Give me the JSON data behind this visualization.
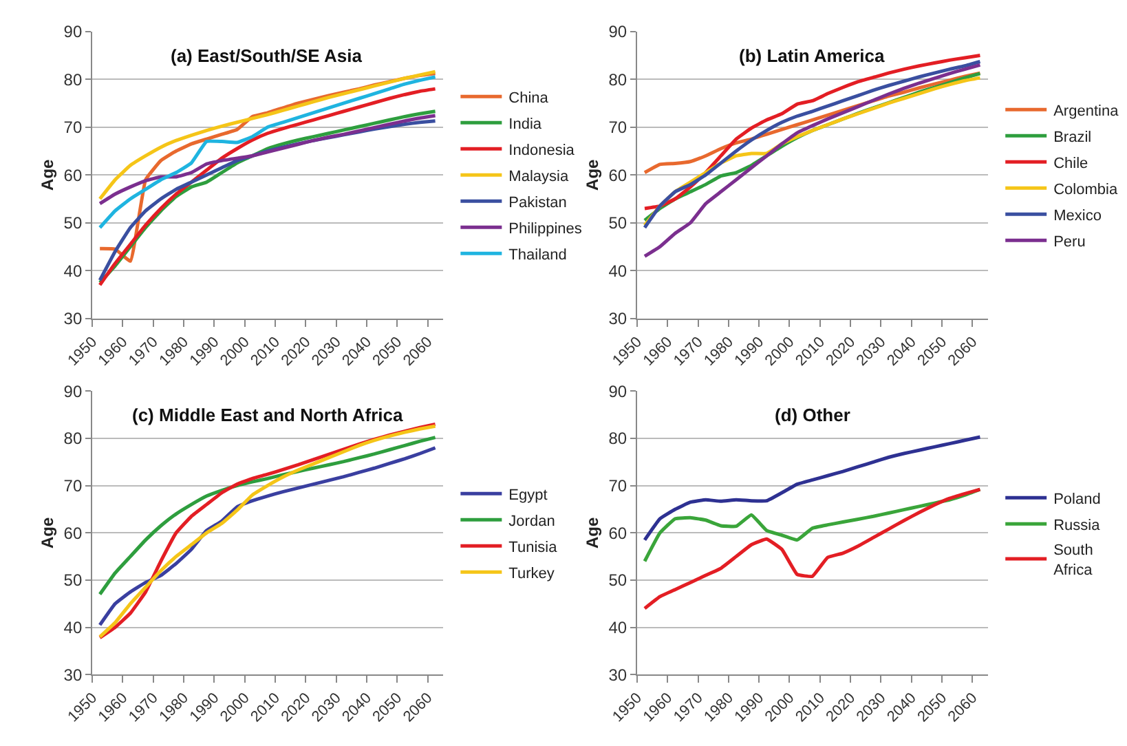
{
  "chart_data": [
    {
      "type": "line",
      "title": "(a) East/South/SE Asia",
      "ylabel": "Age",
      "grid": "y",
      "legend": "right",
      "x": [
        1952.5,
        1957.5,
        1962.5,
        1967.5,
        1972.5,
        1977.5,
        1982.5,
        1987.5,
        1992.5,
        1997.5,
        2002.5,
        2007.5,
        2012.5,
        2017.5,
        2022.5,
        2027.5,
        2032.5,
        2037.5,
        2042.5,
        2047.5,
        2052.5,
        2057.5,
        2062.5
      ],
      "xlim": [
        1950,
        2065
      ],
      "xticks": [
        1950,
        1960,
        1970,
        1980,
        1990,
        2000,
        2010,
        2020,
        2030,
        2040,
        2050,
        2060
      ],
      "ylim": [
        30,
        90
      ],
      "yticks": [
        30,
        40,
        50,
        60,
        70,
        80,
        90
      ],
      "series": [
        {
          "name": "China",
          "color": "#e8692e",
          "values": [
            44.6,
            44.5,
            42,
            59,
            63,
            65,
            66.5,
            67.5,
            68.5,
            69.5,
            72.2,
            73,
            74,
            75,
            75.8,
            76.6,
            77.3,
            78,
            78.8,
            79.5,
            80.2,
            80.8,
            81.2
          ]
        },
        {
          "name": "India",
          "color": "#2e9e3e",
          "values": [
            37.5,
            41,
            45,
            49,
            52.5,
            55.5,
            57.5,
            58.5,
            60.5,
            62.5,
            64,
            65.5,
            66.5,
            67.3,
            68,
            68.7,
            69.4,
            70.1,
            70.8,
            71.5,
            72.2,
            72.8,
            73.3
          ]
        },
        {
          "name": "Indonesia",
          "color": "#e31e24",
          "values": [
            37,
            41.5,
            45.5,
            49.5,
            53,
            56,
            58.5,
            61,
            63.5,
            65.5,
            67.3,
            68.7,
            69.7,
            70.6,
            71.5,
            72.4,
            73.3,
            74.2,
            75.1,
            76,
            76.8,
            77.5,
            78
          ]
        },
        {
          "name": "Malaysia",
          "color": "#f5c518",
          "values": [
            55,
            59,
            62,
            64,
            65.8,
            67.2,
            68.3,
            69.3,
            70.2,
            71,
            71.8,
            72.6,
            73.5,
            74.4,
            75.3,
            76.2,
            77,
            77.8,
            78.6,
            79.4,
            80.2,
            80.9,
            81.6
          ]
        },
        {
          "name": "Pakistan",
          "color": "#3a4fa0",
          "values": [
            38,
            44,
            49,
            52.5,
            55,
            57,
            58.5,
            60,
            61.5,
            63,
            64,
            65,
            65.8,
            66.5,
            67.2,
            67.8,
            68.4,
            69,
            69.6,
            70.1,
            70.6,
            71,
            71.3
          ]
        },
        {
          "name": "Philippines",
          "color": "#7b2f8f",
          "values": [
            54,
            56,
            57.5,
            58.8,
            59.6,
            59.6,
            60.5,
            62.3,
            63,
            63.5,
            64,
            64.8,
            65.6,
            66.4,
            67.2,
            67.9,
            68.5,
            69.2,
            69.9,
            70.6,
            71.3,
            71.9,
            72.4
          ]
        },
        {
          "name": "Thailand",
          "color": "#1fb4e0",
          "values": [
            49,
            52.5,
            55,
            57,
            59,
            60.5,
            62.5,
            67,
            67,
            66.8,
            68,
            70,
            71,
            72,
            73,
            74,
            75,
            76,
            77,
            78,
            79,
            79.8,
            80.5
          ]
        }
      ]
    },
    {
      "type": "line",
      "title": "(b) Latin America",
      "ylabel": "Age",
      "grid": "y",
      "legend": "right",
      "x": [
        1952.5,
        1957.5,
        1962.5,
        1967.5,
        1972.5,
        1977.5,
        1982.5,
        1987.5,
        1992.5,
        1997.5,
        2002.5,
        2007.5,
        2012.5,
        2017.5,
        2022.5,
        2027.5,
        2032.5,
        2037.5,
        2042.5,
        2047.5,
        2052.5,
        2057.5,
        2062.5
      ],
      "xlim": [
        1950,
        2065
      ],
      "xticks": [
        1950,
        1960,
        1970,
        1980,
        1990,
        2000,
        2010,
        2020,
        2030,
        2040,
        2050,
        2060
      ],
      "ylim": [
        30,
        90
      ],
      "yticks": [
        30,
        40,
        50,
        60,
        70,
        80,
        90
      ],
      "series": [
        {
          "name": "Argentina",
          "color": "#e8692e",
          "values": [
            60.5,
            62.2,
            62.4,
            62.8,
            64,
            65.5,
            66.7,
            67.5,
            68.5,
            69.5,
            70.5,
            71.5,
            72.5,
            73.5,
            74.5,
            75.5,
            76.5,
            77.3,
            78.2,
            79,
            79.8,
            80.6,
            81.3
          ]
        },
        {
          "name": "Brazil",
          "color": "#2e9e3e",
          "values": [
            50.5,
            53,
            55,
            56.5,
            58,
            59.8,
            60.5,
            62,
            64,
            66,
            67.8,
            69.3,
            70.5,
            71.7,
            72.9,
            74,
            75.1,
            76.2,
            77.3,
            78.3,
            79.3,
            80.3,
            81.2
          ]
        },
        {
          "name": "Chile",
          "color": "#e31e24",
          "values": [
            53,
            53.5,
            55,
            57.5,
            60.5,
            64,
            67.5,
            69.8,
            71.5,
            72.8,
            74.8,
            75.5,
            77,
            78.3,
            79.5,
            80.4,
            81.3,
            82.1,
            82.8,
            83.4,
            84,
            84.5,
            85
          ]
        },
        {
          "name": "Colombia",
          "color": "#f5c518",
          "values": [
            49.5,
            53.5,
            56.5,
            58.5,
            60.5,
            62.5,
            64,
            64.5,
            64.5,
            66.5,
            68,
            69.3,
            70.5,
            71.7,
            72.8,
            73.9,
            75,
            76,
            77,
            78,
            78.9,
            79.7,
            80.3
          ]
        },
        {
          "name": "Mexico",
          "color": "#3a4fa0",
          "values": [
            49,
            53.5,
            56.5,
            58,
            60,
            62.5,
            65,
            67.3,
            69.3,
            71,
            72.3,
            73.3,
            74.4,
            75.5,
            76.6,
            77.7,
            78.7,
            79.6,
            80.5,
            81.3,
            82.1,
            82.8,
            83.7
          ]
        },
        {
          "name": "Peru",
          "color": "#7b2f8f",
          "values": [
            43,
            45,
            47.8,
            50,
            54,
            56.5,
            59,
            61.5,
            64,
            66.5,
            68.8,
            70.3,
            71.7,
            73,
            74.3,
            75.6,
            76.9,
            78.1,
            79.2,
            80.2,
            81.2,
            82.1,
            83
          ]
        }
      ]
    },
    {
      "type": "line",
      "title": "(c) Middle East and North Africa",
      "ylabel": "Age",
      "grid": "y",
      "legend": "right",
      "x": [
        1952.5,
        1957.5,
        1962.5,
        1967.5,
        1972.5,
        1977.5,
        1982.5,
        1987.5,
        1992.5,
        1997.5,
        2002.5,
        2007.5,
        2012.5,
        2017.5,
        2022.5,
        2027.5,
        2032.5,
        2037.5,
        2042.5,
        2047.5,
        2052.5,
        2057.5,
        2062.5
      ],
      "xlim": [
        1950,
        2065
      ],
      "xticks": [
        1950,
        1960,
        1970,
        1980,
        1990,
        2000,
        2010,
        2020,
        2030,
        2040,
        2050,
        2060
      ],
      "ylim": [
        30,
        90
      ],
      "yticks": [
        30,
        40,
        50,
        60,
        70,
        80,
        90
      ],
      "series": [
        {
          "name": "Egypt",
          "color": "#3a3fa0",
          "values": [
            40.5,
            45,
            47.5,
            49.5,
            51,
            53.5,
            56.5,
            60.5,
            62.5,
            65.5,
            66.8,
            67.8,
            68.7,
            69.5,
            70.3,
            71.1,
            71.9,
            72.8,
            73.7,
            74.7,
            75.7,
            76.8,
            78
          ]
        },
        {
          "name": "Jordan",
          "color": "#2e9e3e",
          "values": [
            47,
            51.5,
            55,
            58.5,
            61.5,
            64,
            66,
            67.8,
            69,
            70,
            70.8,
            71.5,
            72.3,
            73,
            73.7,
            74.4,
            75.1,
            75.9,
            76.7,
            77.6,
            78.5,
            79.4,
            80.2
          ]
        },
        {
          "name": "Tunisia",
          "color": "#e31e24",
          "values": [
            37.8,
            40,
            43,
            47.5,
            54,
            60,
            63.5,
            66,
            68.5,
            70.3,
            71.5,
            72.4,
            73.4,
            74.4,
            75.5,
            76.6,
            77.7,
            78.8,
            79.8,
            80.7,
            81.5,
            82.3,
            83
          ]
        },
        {
          "name": "Turkey",
          "color": "#f5c518",
          "values": [
            38,
            41,
            45,
            48.5,
            52,
            55,
            57.5,
            60,
            62,
            64.8,
            68,
            70,
            71.8,
            73.3,
            74.6,
            75.9,
            77.2,
            78.5,
            79.6,
            80.5,
            81.3,
            82,
            82.6
          ]
        }
      ]
    },
    {
      "type": "line",
      "title": "(d) Other",
      "ylabel": "Age",
      "grid": "y",
      "legend": "right",
      "x": [
        1952.5,
        1957.5,
        1962.5,
        1967.5,
        1972.5,
        1977.5,
        1982.5,
        1987.5,
        1992.5,
        1997.5,
        2002.5,
        2007.5,
        2012.5,
        2017.5,
        2022.5,
        2027.5,
        2032.5,
        2037.5,
        2042.5,
        2047.5,
        2052.5,
        2057.5,
        2062.5
      ],
      "xlim": [
        1950,
        2065
      ],
      "xticks": [
        1950,
        1960,
        1970,
        1980,
        1990,
        2000,
        2010,
        2020,
        2030,
        2040,
        2050,
        2060
      ],
      "ylim": [
        30,
        90
      ],
      "yticks": [
        30,
        40,
        50,
        60,
        70,
        80,
        90
      ],
      "series": [
        {
          "name": "Poland",
          "color": "#2e3192",
          "values": [
            58.5,
            63,
            65,
            66.5,
            67,
            66.7,
            67,
            66.8,
            66.8,
            68.5,
            70.3,
            71.2,
            72.1,
            73,
            74,
            75,
            76,
            76.8,
            77.5,
            78.2,
            78.9,
            79.6,
            80.3
          ]
        },
        {
          "name": "Russia",
          "color": "#3aa53a",
          "values": [
            54,
            60,
            63,
            63.2,
            62.7,
            61.5,
            61.4,
            63.8,
            60.5,
            59.5,
            58.5,
            61,
            61.7,
            62.3,
            62.9,
            63.5,
            64.2,
            64.9,
            65.6,
            66.3,
            67,
            68,
            69.2
          ]
        },
        {
          "name": "South Africa",
          "color": "#e31e24",
          "values": [
            44,
            46.5,
            48,
            49.5,
            51,
            52.5,
            55,
            57.5,
            58.7,
            56.5,
            51.2,
            50.8,
            54.8,
            55.7,
            57.2,
            59,
            60.8,
            62.6,
            64.3,
            65.9,
            67.3,
            68.3,
            69.2
          ]
        }
      ]
    }
  ]
}
